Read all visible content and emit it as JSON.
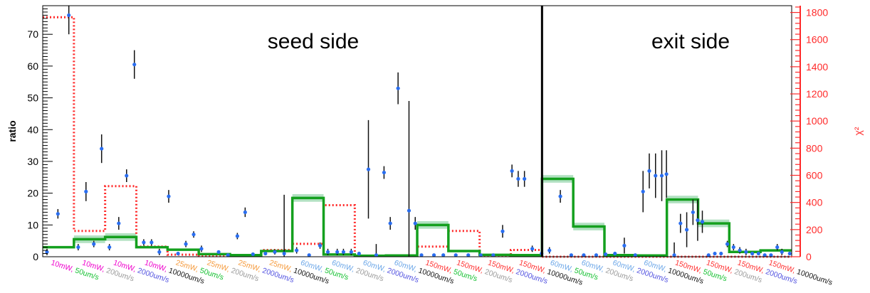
{
  "chart_data": {
    "type": "bar",
    "ylabel": "ratio",
    "y2label": "χ²",
    "ylim": [
      0,
      79
    ],
    "y2lim": [
      0,
      1850
    ],
    "yticks": [
      0,
      10,
      20,
      30,
      40,
      50,
      60,
      70
    ],
    "y2ticks": [
      0,
      200,
      400,
      600,
      800,
      1000,
      1200,
      1400,
      1600,
      1800
    ],
    "grid": false,
    "regions": [
      {
        "label": "seed side",
        "from": 0,
        "to": 16
      },
      {
        "label": "exit side",
        "from": 16,
        "to": 24
      }
    ],
    "categories": [
      {
        "power": "10mW",
        "speed": "50um/s"
      },
      {
        "power": "10mW",
        "speed": "200um/s"
      },
      {
        "power": "10mW",
        "speed": "2000um/s"
      },
      {
        "power": "10mW",
        "speed": "10000um/s"
      },
      {
        "power": "25mW",
        "speed": "50um/s"
      },
      {
        "power": "25mW",
        "speed": "200um/s"
      },
      {
        "power": "25mW",
        "speed": "2000um/s"
      },
      {
        "power": "25mW",
        "speed": "10000um/s"
      },
      {
        "power": "60mW",
        "speed": "50um/s"
      },
      {
        "power": "60mW",
        "speed": "200um/s"
      },
      {
        "power": "60mW",
        "speed": "2000um/s"
      },
      {
        "power": "60mW",
        "speed": "10000um/s"
      },
      {
        "power": "150mW",
        "speed": "50um/s"
      },
      {
        "power": "150mW",
        "speed": "200um/s"
      },
      {
        "power": "150mW",
        "speed": "2000um/s"
      },
      {
        "power": "150mW",
        "speed": "10000um/s"
      },
      {
        "power": "60mW",
        "speed": "50um/s"
      },
      {
        "power": "60mW",
        "speed": "200um/s"
      },
      {
        "power": "60mW",
        "speed": "2000um/s"
      },
      {
        "power": "60mW",
        "speed": "10000um/s"
      },
      {
        "power": "150mW",
        "speed": "50um/s"
      },
      {
        "power": "150mW",
        "speed": "200um/s"
      },
      {
        "power": "150mW",
        "speed": "2000um/s"
      },
      {
        "power": "150mW",
        "speed": "10000um/s"
      }
    ],
    "fit_ratio": [
      3,
      5.5,
      6.2,
      3,
      2.2,
      0.8,
      0.5,
      1.8,
      18.5,
      0.7,
      0.3,
      0.4,
      10,
      1.8,
      0.6,
      0.5,
      24.5,
      9.5,
      0.5,
      0.4,
      18,
      10.5,
      1.5,
      2
    ],
    "chi2": [
      1765,
      190,
      520,
      75,
      15,
      5,
      10,
      50,
      95,
      380,
      5,
      5,
      75,
      190,
      5,
      50,
      0,
      0,
      0,
      0,
      0,
      0,
      0,
      0
    ],
    "points": [
      {
        "bin": 0,
        "y": 1.5,
        "err": 1
      },
      {
        "bin": 0.35,
        "y": 13.5,
        "err": 1.5
      },
      {
        "bin": 0.7,
        "y": 76,
        "err": 6
      },
      {
        "bin": 1.0,
        "y": 3,
        "err": 1
      },
      {
        "bin": 1.25,
        "y": 20.5,
        "err": 3
      },
      {
        "bin": 1.5,
        "y": 4,
        "err": 1
      },
      {
        "bin": 1.75,
        "y": 34,
        "err": 4.5
      },
      {
        "bin": 2.0,
        "y": 3,
        "err": 1
      },
      {
        "bin": 2.3,
        "y": 10.5,
        "err": 2
      },
      {
        "bin": 2.55,
        "y": 25.5,
        "err": 2
      },
      {
        "bin": 2.8,
        "y": 60.5,
        "err": 4.5
      },
      {
        "bin": 3.1,
        "y": 4.5,
        "err": 1
      },
      {
        "bin": 3.35,
        "y": 4.5,
        "err": 1
      },
      {
        "bin": 3.6,
        "y": 1.5,
        "err": 1
      },
      {
        "bin": 3.9,
        "y": 19,
        "err": 2
      },
      {
        "bin": 4.2,
        "y": 1,
        "err": 0.5
      },
      {
        "bin": 4.45,
        "y": 4,
        "err": 1
      },
      {
        "bin": 4.7,
        "y": 7,
        "err": 1
      },
      {
        "bin": 4.95,
        "y": 2.5,
        "err": 1
      },
      {
        "bin": 5.5,
        "y": 1.5,
        "err": 0.5
      },
      {
        "bin": 5.8,
        "y": 0.5,
        "err": 0.5
      },
      {
        "bin": 6.1,
        "y": 6.5,
        "err": 1
      },
      {
        "bin": 6.35,
        "y": 14,
        "err": 1.5
      },
      {
        "bin": 6.6,
        "y": 0.8,
        "err": 0.5
      },
      {
        "bin": 7.0,
        "y": 1,
        "err": 0.5
      },
      {
        "bin": 7.3,
        "y": 1.5,
        "err": 0.8
      },
      {
        "bin": 7.6,
        "y": 1,
        "err": 18.5
      },
      {
        "bin": 8.0,
        "y": 2,
        "err": 1
      },
      {
        "bin": 8.4,
        "y": 0.5,
        "err": 0.4
      },
      {
        "bin": 8.75,
        "y": 3.5,
        "err": 1
      },
      {
        "bin": 9.0,
        "y": 1.5,
        "err": 1
      },
      {
        "bin": 9.3,
        "y": 1.5,
        "err": 1
      },
      {
        "bin": 9.5,
        "y": 1.5,
        "err": 1
      },
      {
        "bin": 9.75,
        "y": 1.5,
        "err": 1
      },
      {
        "bin": 10.0,
        "y": 1,
        "err": 0.5
      },
      {
        "bin": 10.3,
        "y": 27.5,
        "err": 15.5
      },
      {
        "bin": 10.55,
        "y": 0.5,
        "err": 3.5
      },
      {
        "bin": 10.8,
        "y": 26.5,
        "err": 2
      },
      {
        "bin": 11.0,
        "y": 10.5,
        "err": 2
      },
      {
        "bin": 11.25,
        "y": 53,
        "err": 5
      },
      {
        "bin": 11.6,
        "y": 14.5,
        "err": 34.5
      },
      {
        "bin": 11.8,
        "y": 10.5,
        "err": 2
      },
      {
        "bin": 12.0,
        "y": 0.5,
        "err": 0.5
      },
      {
        "bin": 12.4,
        "y": 0.5,
        "err": 0.5
      },
      {
        "bin": 12.7,
        "y": 0.5,
        "err": 0.5
      },
      {
        "bin": 13.1,
        "y": 0.5,
        "err": 0.5
      },
      {
        "bin": 13.5,
        "y": 0.5,
        "err": 0.5
      },
      {
        "bin": 13.9,
        "y": 0.5,
        "err": 0.5
      },
      {
        "bin": 14.3,
        "y": 0.5,
        "err": 0.5
      },
      {
        "bin": 14.6,
        "y": 8,
        "err": 2
      },
      {
        "bin": 14.9,
        "y": 27,
        "err": 2
      },
      {
        "bin": 15.1,
        "y": 24.5,
        "err": 2.5
      },
      {
        "bin": 15.3,
        "y": 24.5,
        "err": 2.5
      },
      {
        "bin": 15.55,
        "y": 2.5,
        "err": 1
      },
      {
        "bin": 15.85,
        "y": 1,
        "err": 0.5
      },
      {
        "bin": 16.1,
        "y": 2,
        "err": 1
      },
      {
        "bin": 16.45,
        "y": 19,
        "err": 2
      },
      {
        "bin": 16.8,
        "y": 0.5,
        "err": 0.5
      },
      {
        "bin": 17.2,
        "y": 0.5,
        "err": 0.5
      },
      {
        "bin": 17.6,
        "y": 0.5,
        "err": 0.5
      },
      {
        "bin": 17.9,
        "y": 0.8,
        "err": 0.5
      },
      {
        "bin": 18.2,
        "y": 1,
        "err": 0.5
      },
      {
        "bin": 18.5,
        "y": 3.5,
        "err": 2.5
      },
      {
        "bin": 18.85,
        "y": 0.5,
        "err": 0.5
      },
      {
        "bin": 19.1,
        "y": 20.5,
        "err": 6.5
      },
      {
        "bin": 19.3,
        "y": 27,
        "err": 5.5
      },
      {
        "bin": 19.5,
        "y": 25.5,
        "err": 7
      },
      {
        "bin": 19.7,
        "y": 25.5,
        "err": 8
      },
      {
        "bin": 19.85,
        "y": 26,
        "err": 7.5
      },
      {
        "bin": 20.1,
        "y": 0.5,
        "err": 4
      },
      {
        "bin": 20.3,
        "y": 10.5,
        "err": 3
      },
      {
        "bin": 20.5,
        "y": 8.5,
        "err": 5.5
      },
      {
        "bin": 20.7,
        "y": 14,
        "err": 4
      },
      {
        "bin": 20.85,
        "y": 11.5,
        "err": 6.5
      },
      {
        "bin": 21.0,
        "y": 11,
        "err": 3.5
      },
      {
        "bin": 21.2,
        "y": 0.5,
        "err": 0.5
      },
      {
        "bin": 21.4,
        "y": 1,
        "err": 0.5
      },
      {
        "bin": 21.6,
        "y": 1,
        "err": 0.5
      },
      {
        "bin": 21.8,
        "y": 4,
        "err": 1
      },
      {
        "bin": 22.0,
        "y": 3,
        "err": 1
      },
      {
        "bin": 22.2,
        "y": 2,
        "err": 1
      },
      {
        "bin": 22.4,
        "y": 1.5,
        "err": 1
      },
      {
        "bin": 22.6,
        "y": 1,
        "err": 0.5
      },
      {
        "bin": 22.8,
        "y": 1,
        "err": 0.5
      },
      {
        "bin": 23.0,
        "y": 0.5,
        "err": 0.5
      },
      {
        "bin": 23.2,
        "y": 0.5,
        "err": 0.5
      },
      {
        "bin": 23.4,
        "y": 3,
        "err": 1
      },
      {
        "bin": 23.55,
        "y": 1.5,
        "err": 1
      },
      {
        "bin": 23.8,
        "y": 1,
        "err": 0.5
      }
    ],
    "colors": {
      "fit": "#14a01e",
      "fit_band": "#9fd9b3",
      "chi2": "#ff2a2a",
      "points": "#2a6ef0",
      "errorbar": "#111111",
      "axis": "#000000",
      "y2axis": "#ff2a2a"
    },
    "power_colors": {
      "10mW": "#ee00cc",
      "25mW": "#f59a3c",
      "60mW": "#6ea8e8",
      "150mW": "#ff3030"
    },
    "speed_colors": {
      "50um/s": "#14c030",
      "200um/s": "#9a9a9a",
      "2000um/s": "#5050e0",
      "10000um/s": "#111111"
    }
  }
}
